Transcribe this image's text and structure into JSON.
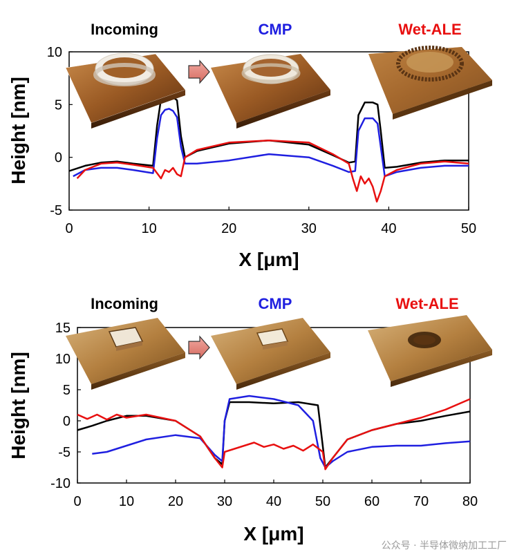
{
  "chart_data": [
    {
      "type": "line",
      "panel": "ring",
      "xlabel": "X [μm]",
      "ylabel": "Height [nm]",
      "xlim": [
        0,
        50
      ],
      "ylim": [
        -5,
        10
      ],
      "xticks": [
        "0",
        "10",
        "20",
        "30",
        "40",
        "50"
      ],
      "yticks": [
        "-5",
        "0",
        "5",
        "10"
      ],
      "stage_labels": [
        "Incoming",
        "CMP",
        "Wet-ALE"
      ],
      "colors": {
        "Incoming": "#000000",
        "CMP": "#1f1fe0",
        "Wet-ALE": "#e81010"
      },
      "series": [
        {
          "name": "Incoming",
          "x": [
            0,
            2,
            4,
            6,
            8,
            10.5,
            11,
            11.5,
            12,
            12.5,
            13,
            13.5,
            14,
            14.5,
            16,
            20,
            25,
            30,
            33,
            35,
            35.8,
            36.2,
            37,
            38,
            38.6,
            39,
            39.5,
            41,
            44,
            47,
            50
          ],
          "y": [
            -1.3,
            -0.8,
            -0.5,
            -0.4,
            -0.6,
            -0.8,
            3,
            5.5,
            5.8,
            5.8,
            5.7,
            5.4,
            2,
            0,
            0.6,
            1.3,
            1.6,
            1.2,
            0.2,
            -0.5,
            -0.4,
            4,
            5.2,
            5.2,
            5,
            2.5,
            -1,
            -0.9,
            -0.5,
            -0.3,
            -0.3
          ]
        },
        {
          "name": "CMP",
          "x": [
            0.5,
            2,
            4,
            6,
            8,
            10.5,
            11,
            11.5,
            12,
            12.5,
            13,
            13.5,
            14,
            14.5,
            16,
            20,
            25,
            30,
            33,
            35,
            35.8,
            36.2,
            37,
            38,
            38.6,
            39,
            39.5,
            41,
            44,
            47,
            50
          ],
          "y": [
            -1.8,
            -1.2,
            -1,
            -1,
            -1.2,
            -1.5,
            1.8,
            4,
            4.5,
            4.6,
            4.4,
            3.8,
            1,
            -0.6,
            -0.6,
            -0.3,
            0.3,
            0,
            -0.8,
            -1.4,
            -1.3,
            2.5,
            3.7,
            3.7,
            3.2,
            1,
            -1.8,
            -1.4,
            -1,
            -0.8,
            -0.8
          ]
        },
        {
          "name": "Wet-ALE",
          "x": [
            1,
            2,
            4,
            6,
            8,
            10.5,
            11,
            11.5,
            12,
            12.5,
            13,
            13.5,
            14,
            14.5,
            16,
            20,
            25,
            30,
            33,
            35,
            35.5,
            36,
            36.5,
            37,
            37.5,
            38,
            38.5,
            39,
            39.5,
            41,
            44,
            47,
            50
          ],
          "y": [
            -2,
            -1.2,
            -0.6,
            -0.5,
            -0.7,
            -1,
            -1.5,
            -2,
            -1.2,
            -1.4,
            -1,
            -1.6,
            -1.8,
            0,
            0.7,
            1.4,
            1.6,
            1.4,
            0.3,
            -0.6,
            -2,
            -3.2,
            -1.8,
            -2.5,
            -2,
            -2.8,
            -4.2,
            -3.2,
            -1.8,
            -1.2,
            -0.6,
            -0.4,
            -0.6
          ]
        }
      ]
    },
    {
      "type": "line",
      "panel": "square",
      "xlabel": "X [μm]",
      "ylabel": "Height [nm]",
      "xlim": [
        0,
        80
      ],
      "ylim": [
        -10,
        15
      ],
      "xticks": [
        "0",
        "10",
        "20",
        "30",
        "40",
        "50",
        "60",
        "70",
        "80"
      ],
      "yticks": [
        "-10",
        "-5",
        "0",
        "5",
        "10",
        "15"
      ],
      "stage_labels": [
        "Incoming",
        "CMP",
        "Wet-ALE"
      ],
      "colors": {
        "Incoming": "#000000",
        "CMP": "#1f1fe0",
        "Wet-ALE": "#e81010"
      },
      "series": [
        {
          "name": "Incoming",
          "x": [
            0,
            3,
            6,
            10,
            14,
            20,
            25,
            28,
            29.5,
            30,
            31,
            35,
            40,
            45,
            49,
            50.5,
            52,
            55,
            60,
            65,
            70,
            75,
            80
          ],
          "y": [
            -1.5,
            -0.8,
            0,
            0.8,
            0.8,
            0,
            -2.5,
            -6,
            -7,
            0,
            3,
            3,
            2.8,
            3,
            2.5,
            -7.5,
            -6,
            -3,
            -1.5,
            -0.5,
            0,
            0.8,
            1.5
          ]
        },
        {
          "name": "CMP",
          "x": [
            3,
            6,
            10,
            14,
            20,
            25,
            28,
            29.5,
            30,
            31,
            35,
            40,
            45,
            48,
            49.5,
            50.5,
            52,
            55,
            60,
            65,
            70,
            75,
            80
          ],
          "y": [
            -5.3,
            -5,
            -4,
            -3,
            -2.3,
            -2.8,
            -5.5,
            -6.5,
            0,
            3.5,
            4,
            3.5,
            2.5,
            0,
            -6,
            -7.5,
            -6.5,
            -5,
            -4.2,
            -4,
            -4,
            -3.6,
            -3.3
          ]
        },
        {
          "name": "Wet-ALE",
          "x": [
            0,
            2,
            4,
            6,
            8,
            10,
            14,
            20,
            25,
            28,
            29.5,
            30,
            32,
            34,
            36,
            38,
            40,
            42,
            44,
            46,
            48,
            50,
            50.5,
            52,
            55,
            60,
            65,
            70,
            75,
            80
          ],
          "y": [
            1,
            0.3,
            1,
            0.2,
            1,
            0.5,
            1,
            0,
            -2.5,
            -6,
            -7.5,
            -5,
            -4.5,
            -4,
            -3.5,
            -4.2,
            -3.8,
            -4.5,
            -4,
            -4.8,
            -3.8,
            -5,
            -7.8,
            -6,
            -3,
            -1.5,
            -0.5,
            0.5,
            1.8,
            3.5
          ]
        }
      ]
    }
  ],
  "watermark": "公众号 · 半导体微纳加工工厂"
}
